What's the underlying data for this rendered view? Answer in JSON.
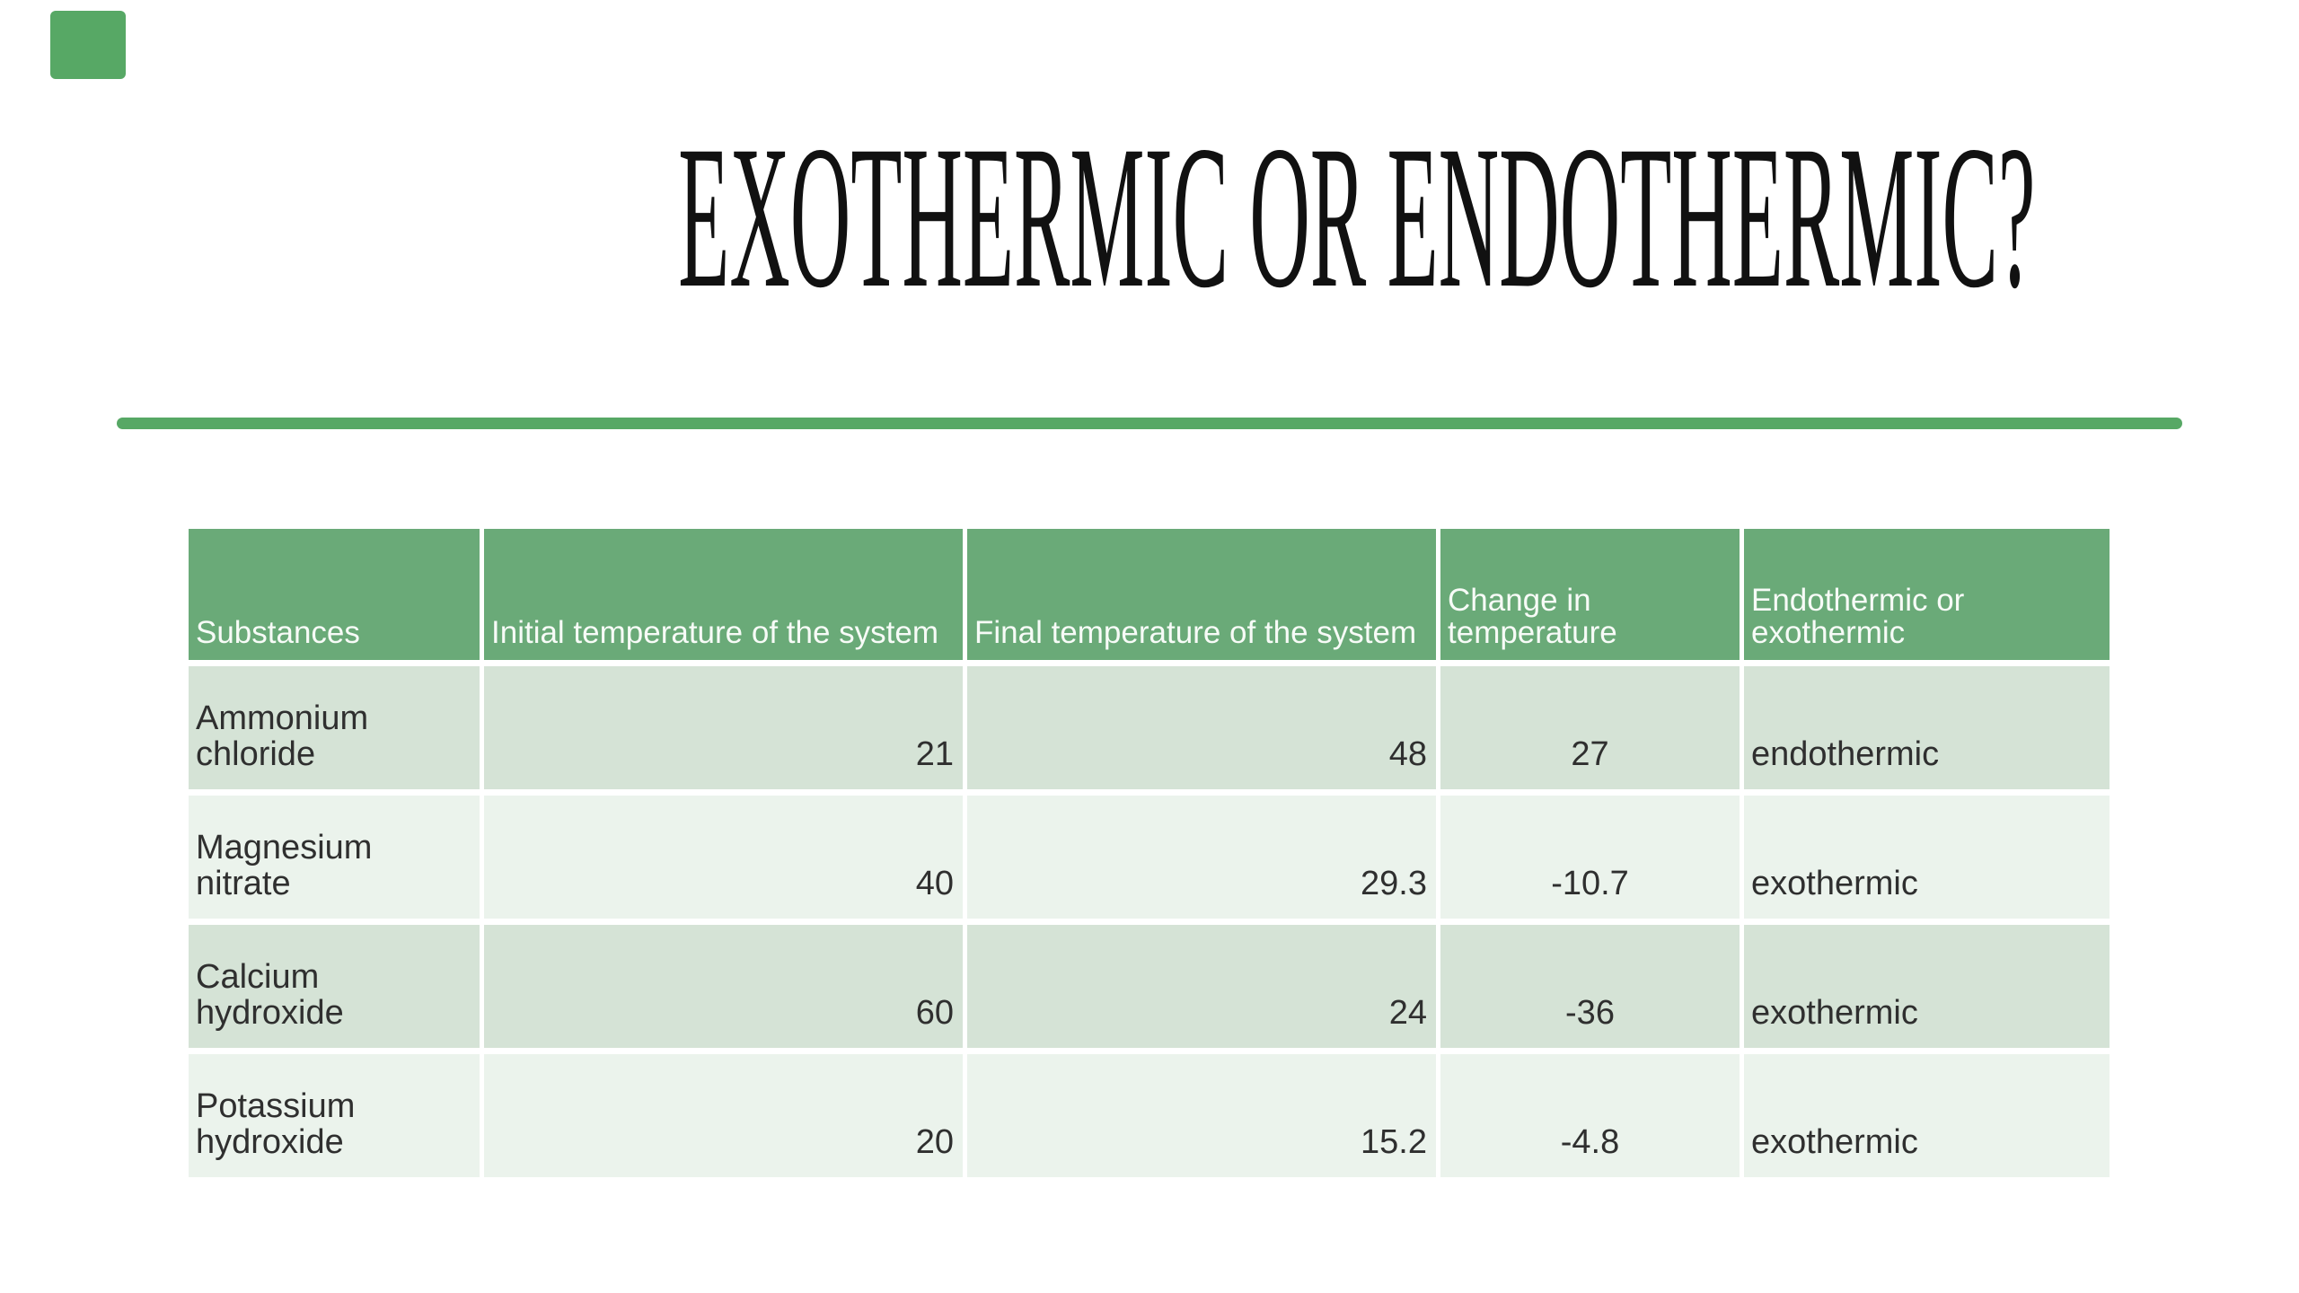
{
  "slide": {
    "title": "EXOTHERMIC OR ENDOTHERMIC?",
    "colors": {
      "accent": "#57a865",
      "header_bg": "#6aaa78",
      "row_dark": "#d5e3d6",
      "row_light": "#ebf3ec",
      "header_text": "#f7fbf7",
      "body_text": "#2f2f2f"
    }
  },
  "table": {
    "headers": [
      "Substances",
      "Initial temperature of the system",
      "Final temperature of the system",
      "Change in temperature",
      "Endothermic or exothermic"
    ],
    "rows": [
      {
        "substance": "Ammonium chloride",
        "initial": "21",
        "final": "48",
        "change": "27",
        "classification": "endothermic"
      },
      {
        "substance": "Magnesium nitrate",
        "initial": "40",
        "final": "29.3",
        "change": "-10.7",
        "classification": "exothermic"
      },
      {
        "substance": "Calcium hydroxide",
        "initial": "60",
        "final": "24",
        "change": "-36",
        "classification": "exothermic"
      },
      {
        "substance": "Potassium hydroxide",
        "initial": "20",
        "final": "15.2",
        "change": "-4.8",
        "classification": "exothermic"
      }
    ]
  },
  "chart_data": {
    "type": "table",
    "title": "EXOTHERMIC OR ENDOTHERMIC?",
    "columns": [
      "Substances",
      "Initial temperature of the system",
      "Final temperature of the system",
      "Change in temperature",
      "Endothermic or exothermic"
    ],
    "rows": [
      [
        "Ammonium chloride",
        21,
        48,
        27,
        "endothermic"
      ],
      [
        "Magnesium nitrate",
        40,
        29.3,
        -10.7,
        "exothermic"
      ],
      [
        "Calcium hydroxide",
        60,
        24,
        -36,
        "exothermic"
      ],
      [
        "Potassium hydroxide",
        20,
        15.2,
        -4.8,
        "exothermic"
      ]
    ]
  }
}
